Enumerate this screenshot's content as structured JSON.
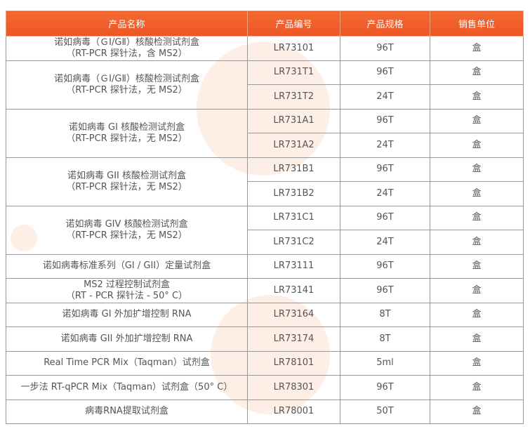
{
  "table": {
    "header": [
      "产品名称",
      "产品编号",
      "产品规格",
      "销售单位"
    ],
    "groups": [
      {
        "name": [
          "诺如病毒（ＧⅠ/GⅡ）核酸检测试剂盒",
          "（RT-PCR 探针法，含 MS2）"
        ],
        "items": [
          [
            "LR73101",
            "96T",
            "盒"
          ]
        ]
      },
      {
        "name": [
          "诺如病毒（ＧⅠ/GⅡ）核酸检测试剂盒",
          "（RT-PCR 探针法，无 MS2）"
        ],
        "items": [
          [
            "LR731T1",
            "96T",
            "盒"
          ],
          [
            "LR731T2",
            "24T",
            "盒"
          ]
        ]
      },
      {
        "name": [
          "诺如病毒 GI 核酸检测试剂盒",
          "（RT-PCR 探针法，无 MS2）"
        ],
        "items": [
          [
            "LR731A1",
            "96T",
            "盒"
          ],
          [
            "LR731A2",
            "24T",
            "盒"
          ]
        ]
      },
      {
        "name": [
          "诺如病毒 GII 核酸检测试剂盒",
          "（RT-PCR 探针法，无 MS2）"
        ],
        "items": [
          [
            "LR731B1",
            "96T",
            "盒"
          ],
          [
            "LR731B2",
            "24T",
            "盒"
          ]
        ]
      },
      {
        "name": [
          "诺如病毒 GIV 核酸检测试剂盒",
          "（RT-PCR 探针法，无 MS2）"
        ],
        "items": [
          [
            "LR731C1",
            "96T",
            "盒"
          ],
          [
            "LR731C2",
            "24T",
            "盒"
          ]
        ]
      },
      {
        "name": [
          "诺如病毒标准系列（GI / GII）定量试剂盒"
        ],
        "items": [
          [
            "LR73111",
            "96T",
            "盒"
          ]
        ]
      },
      {
        "name": [
          "MS2 过程控制试剂盒",
          "（RT - PCR 探针法 - 50° C）"
        ],
        "items": [
          [
            "LR73141",
            "96T",
            "盒"
          ]
        ]
      },
      {
        "name": [
          "诺如病毒 GI 外加扩增控制 RNA"
        ],
        "items": [
          [
            "LR73164",
            "8T",
            "盒"
          ]
        ]
      },
      {
        "name": [
          "诺如病毒 GII 外加扩增控制 RNA"
        ],
        "items": [
          [
            "LR73174",
            "8T",
            "盒"
          ]
        ]
      },
      {
        "name": [
          "Real Time PCR Mix（Taqman）试剂盒"
        ],
        "items": [
          [
            "LR78101",
            "5ml",
            "盒"
          ]
        ]
      },
      {
        "name": [
          "一步法 RT-qPCR Mix（Taqman）试剂盒（50° C）"
        ],
        "items": [
          [
            "LR78301",
            "96T",
            "盒"
          ]
        ]
      },
      {
        "name": [
          "病毒RNA提取试剂盒"
        ],
        "items": [
          [
            "LR78001",
            "50T",
            "盒"
          ]
        ]
      }
    ]
  }
}
